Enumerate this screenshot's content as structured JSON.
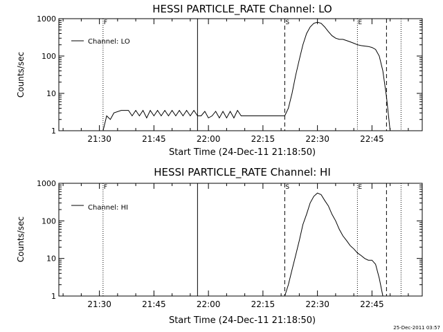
{
  "footer_timestamp": "25-Dec-2011 03:57",
  "chart_data": [
    {
      "type": "line",
      "title": "HESSI PARTICLE_RATE Channel: LO",
      "xlabel": "Start Time (24-Dec-11 21:18:50)",
      "ylabel": "Counts/sec",
      "y_scale": "log",
      "ylim": [
        1,
        1000
      ],
      "xlim": [
        "21:18:50",
        "22:58:50"
      ],
      "x_ticks": [
        "21:30",
        "21:45",
        "22:00",
        "22:15",
        "22:30",
        "22:45"
      ],
      "y_ticks": [
        "1",
        "10",
        "100",
        "1000"
      ],
      "legend": {
        "position": "top-left",
        "entries": [
          "Channel: LO"
        ]
      },
      "markers": [
        {
          "time": "21:31:00",
          "style": "dotted",
          "label": "F"
        },
        {
          "time": "21:57:00",
          "style": "solid",
          "label": ""
        },
        {
          "time": "22:21:00",
          "style": "dashed",
          "label": "S"
        },
        {
          "time": "22:41:00",
          "style": "dotted",
          "label": "E"
        },
        {
          "time": "22:49:00",
          "style": "dashed",
          "label": ""
        },
        {
          "time": "22:53:00",
          "style": "dotted",
          "label": ""
        }
      ],
      "series": [
        {
          "points": [
            [
              "21:31:00",
              1
            ],
            [
              "21:32:00",
              2.5
            ],
            [
              "21:33:00",
              2
            ],
            [
              "21:34:00",
              3
            ],
            [
              "21:36:00",
              3.5
            ],
            [
              "21:38:00",
              3.5
            ],
            [
              "21:39:00",
              2.5
            ],
            [
              "21:40:00",
              3.5
            ],
            [
              "21:41:00",
              2.5
            ],
            [
              "21:42:00",
              3.5
            ],
            [
              "21:43:00",
              2.2
            ],
            [
              "21:44:00",
              3.5
            ],
            [
              "21:45:00",
              2.5
            ],
            [
              "21:46:00",
              3.5
            ],
            [
              "21:47:00",
              2.5
            ],
            [
              "21:48:00",
              3.5
            ],
            [
              "21:49:00",
              2.5
            ],
            [
              "21:50:00",
              3.5
            ],
            [
              "21:51:00",
              2.5
            ],
            [
              "21:52:00",
              3.5
            ],
            [
              "21:53:00",
              2.5
            ],
            [
              "21:54:00",
              3.5
            ],
            [
              "21:55:00",
              2.5
            ],
            [
              "21:56:00",
              3.5
            ],
            [
              "21:57:00",
              2.5
            ],
            [
              "21:58:00",
              2.5
            ],
            [
              "21:59:00",
              3.3
            ],
            [
              "22:00:00",
              2.2
            ],
            [
              "22:01:00",
              2.5
            ],
            [
              "22:02:00",
              3.3
            ],
            [
              "22:03:00",
              2.2
            ],
            [
              "22:04:00",
              3.3
            ],
            [
              "22:05:00",
              2.2
            ],
            [
              "22:06:00",
              3.3
            ],
            [
              "22:07:00",
              2.2
            ],
            [
              "22:08:00",
              3.5
            ],
            [
              "22:09:00",
              2.5
            ],
            [
              "22:10:00",
              2.5
            ],
            [
              "22:12:00",
              2.5
            ],
            [
              "22:14:00",
              2.5
            ],
            [
              "22:16:00",
              2.5
            ],
            [
              "22:18:00",
              2.5
            ],
            [
              "22:20:00",
              2.5
            ],
            [
              "22:21:00",
              2.5
            ],
            [
              "22:22:00",
              4
            ],
            [
              "22:23:00",
              10
            ],
            [
              "22:24:00",
              30
            ],
            [
              "22:25:00",
              80
            ],
            [
              "22:26:00",
              200
            ],
            [
              "22:27:00",
              400
            ],
            [
              "22:28:00",
              600
            ],
            [
              "22:29:00",
              750
            ],
            [
              "22:30:00",
              800
            ],
            [
              "22:31:00",
              750
            ],
            [
              "22:32:00",
              600
            ],
            [
              "22:33:00",
              450
            ],
            [
              "22:34:00",
              350
            ],
            [
              "22:35:00",
              300
            ],
            [
              "22:36:00",
              280
            ],
            [
              "22:37:00",
              280
            ],
            [
              "22:38:00",
              260
            ],
            [
              "22:39:00",
              240
            ],
            [
              "22:40:00",
              220
            ],
            [
              "22:41:00",
              200
            ],
            [
              "22:42:00",
              190
            ],
            [
              "22:43:00",
              185
            ],
            [
              "22:44:00",
              180
            ],
            [
              "22:45:00",
              170
            ],
            [
              "22:46:00",
              150
            ],
            [
              "22:47:00",
              100
            ],
            [
              "22:48:00",
              40
            ],
            [
              "22:49:00",
              8
            ],
            [
              "22:50:00",
              1
            ]
          ]
        }
      ]
    },
    {
      "type": "line",
      "title": "HESSI PARTICLE_RATE Channel: HI",
      "xlabel": "Start Time (24-Dec-11 21:18:50)",
      "ylabel": "Counts/sec",
      "y_scale": "log",
      "ylim": [
        1,
        1000
      ],
      "xlim": [
        "21:18:50",
        "22:58:50"
      ],
      "x_ticks": [
        "21:30",
        "21:45",
        "22:00",
        "22:15",
        "22:30",
        "22:45"
      ],
      "y_ticks": [
        "1",
        "10",
        "100",
        "1000"
      ],
      "legend": {
        "position": "top-left",
        "entries": [
          "Channel: HI"
        ]
      },
      "markers": [
        {
          "time": "21:31:00",
          "style": "dotted",
          "label": "F"
        },
        {
          "time": "21:57:00",
          "style": "solid",
          "label": ""
        },
        {
          "time": "22:21:00",
          "style": "dashed",
          "label": "S"
        },
        {
          "time": "22:41:00",
          "style": "dotted",
          "label": "E"
        },
        {
          "time": "22:49:00",
          "style": "dashed",
          "label": ""
        },
        {
          "time": "22:53:00",
          "style": "dotted",
          "label": ""
        }
      ],
      "series": [
        {
          "points": [
            [
              "22:21:00",
              1
            ],
            [
              "22:22:00",
              2
            ],
            [
              "22:23:00",
              5
            ],
            [
              "22:24:00",
              12
            ],
            [
              "22:25:00",
              30
            ],
            [
              "22:26:00",
              80
            ],
            [
              "22:27:00",
              150
            ],
            [
              "22:28:00",
              300
            ],
            [
              "22:29:00",
              450
            ],
            [
              "22:30:00",
              550
            ],
            [
              "22:31:00",
              500
            ],
            [
              "22:32:00",
              350
            ],
            [
              "22:33:00",
              250
            ],
            [
              "22:34:00",
              150
            ],
            [
              "22:35:00",
              100
            ],
            [
              "22:36:00",
              60
            ],
            [
              "22:37:00",
              40
            ],
            [
              "22:38:00",
              30
            ],
            [
              "22:39:00",
              22
            ],
            [
              "22:40:00",
              18
            ],
            [
              "22:41:00",
              14
            ],
            [
              "22:42:00",
              12
            ],
            [
              "22:43:00",
              10
            ],
            [
              "22:44:00",
              9
            ],
            [
              "22:45:00",
              9
            ],
            [
              "22:46:00",
              7
            ],
            [
              "22:47:00",
              3
            ],
            [
              "22:48:00",
              1
            ]
          ]
        }
      ]
    }
  ]
}
